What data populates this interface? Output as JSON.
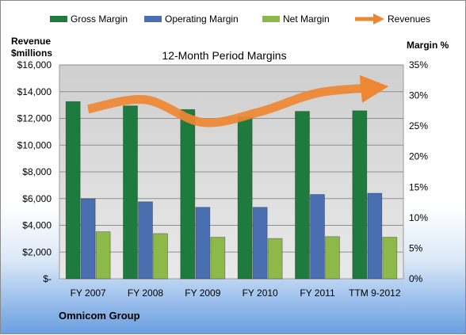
{
  "chart_data": {
    "type": "bar",
    "title": "12-Month Period Margins",
    "categories": [
      "FY 2007",
      "FY 2008",
      "FY 2009",
      "FY 2010",
      "FY 2011",
      "TTM 9-2012"
    ],
    "y_left": {
      "label_line1": "Revenue",
      "label_line2": "$millions",
      "range": [
        0,
        16000
      ],
      "ticks": [
        "$-",
        "$2,000",
        "$4,000",
        "$6,000",
        "$8,000",
        "$10,000",
        "$12,000",
        "$14,000",
        "$16,000"
      ]
    },
    "y_right": {
      "label": "Margin %",
      "range": [
        0,
        35
      ],
      "ticks": [
        "0%",
        "5%",
        "10%",
        "15%",
        "20%",
        "25%",
        "30%",
        "35%"
      ]
    },
    "series": [
      {
        "name": "Gross Margin",
        "axis": "right",
        "type": "bar",
        "color": "#1f7a3e",
        "values": [
          29.0,
          28.3,
          27.7,
          26.5,
          27.4,
          27.5
        ]
      },
      {
        "name": "Operating Margin",
        "axis": "right",
        "type": "bar",
        "color": "#4a6fb0",
        "values": [
          13.1,
          12.6,
          11.7,
          11.7,
          13.8,
          14.0
        ]
      },
      {
        "name": "Net Margin",
        "axis": "right",
        "type": "bar",
        "color": "#8db84a",
        "values": [
          7.7,
          7.4,
          6.8,
          6.6,
          6.9,
          6.8
        ]
      },
      {
        "name": "Revenues",
        "axis": "left",
        "type": "line",
        "color": "#ee8732",
        "values": [
          12700,
          13400,
          11700,
          12500,
          13900,
          14300
        ]
      }
    ],
    "legend_position": "top",
    "grid": true
  },
  "footer": {
    "company": "Omnicom Group"
  }
}
